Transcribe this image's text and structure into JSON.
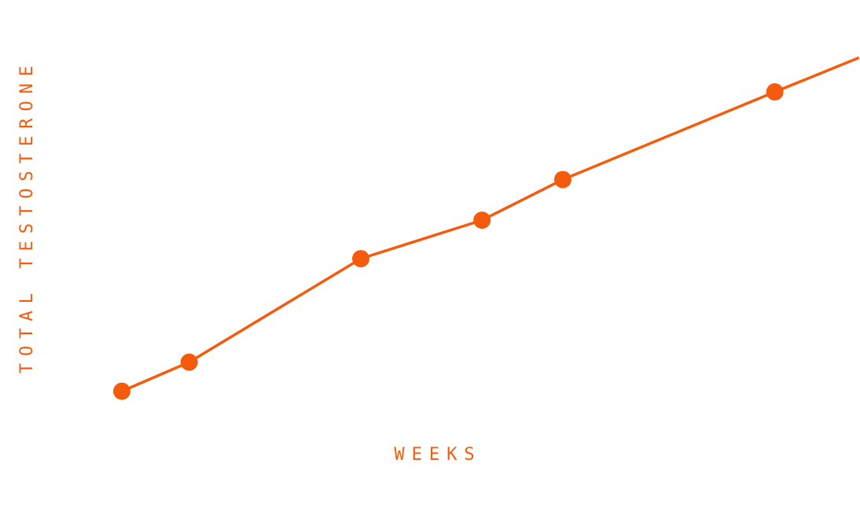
{
  "chart_data": {
    "type": "line",
    "title": "",
    "xlabel": "WEEKS",
    "ylabel": "TOTAL TESTOSTERONE",
    "grid": false,
    "legend": "none",
    "xlim": [
      0,
      11
    ],
    "ylim": [
      0,
      10
    ],
    "series": [
      {
        "x": [
          0,
          1,
          3.55,
          5.35,
          6.55,
          9.7,
          10.95
        ],
        "y": [
          1.2,
          1.88,
          4.3,
          5.2,
          6.15,
          8.2,
          9.0
        ],
        "markers": [
          true,
          true,
          true,
          true,
          true,
          true,
          false
        ]
      }
    ],
    "colors": {
      "line": "#f45b0c",
      "text": "#f45b0c"
    }
  }
}
